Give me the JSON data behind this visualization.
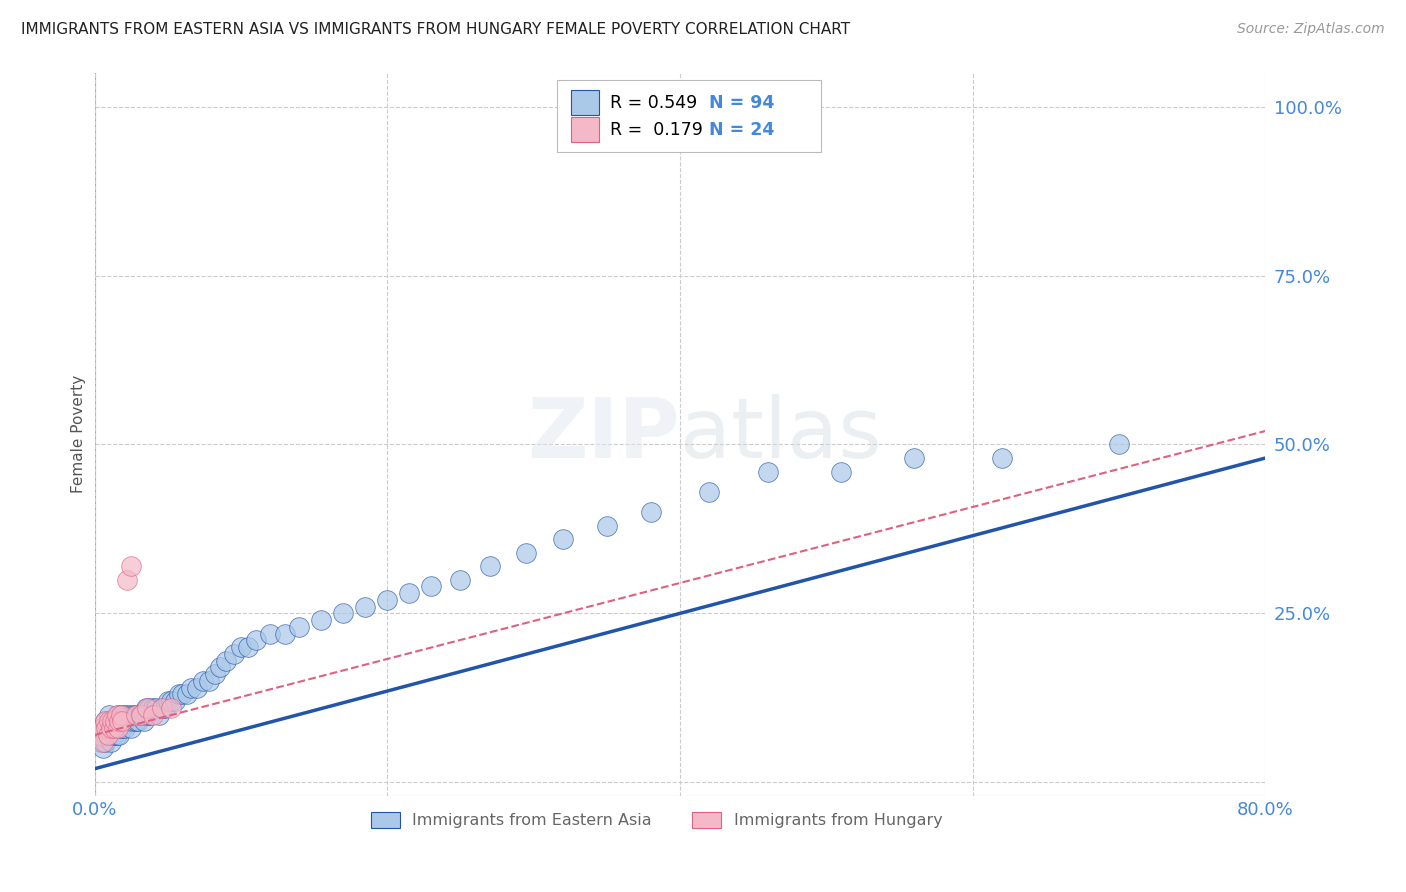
{
  "title": "IMMIGRANTS FROM EASTERN ASIA VS IMMIGRANTS FROM HUNGARY FEMALE POVERTY CORRELATION CHART",
  "source": "Source: ZipAtlas.com",
  "ylabel": "Female Poverty",
  "yticks": [
    0.0,
    0.25,
    0.5,
    0.75,
    1.0
  ],
  "ytick_labels": [
    "",
    "25.0%",
    "50.0%",
    "75.0%",
    "100.0%"
  ],
  "xlim": [
    0.0,
    0.8
  ],
  "ylim": [
    -0.02,
    1.05
  ],
  "legend_label1": "Immigrants from Eastern Asia",
  "legend_label2": "Immigrants from Hungary",
  "r1": 0.549,
  "n1": 94,
  "r2": 0.179,
  "n2": 24,
  "color1": "#aac8e8",
  "color2": "#f4b8c8",
  "trendline1_color": "#2255aa",
  "trendline2_color": "#e06080",
  "background_color": "#ffffff",
  "grid_color": "#cccccc",
  "title_color": "#222222",
  "axis_label_color": "#555555",
  "watermark": "ZIPatlas",
  "scatter1_x": [
    0.004,
    0.005,
    0.006,
    0.006,
    0.007,
    0.007,
    0.008,
    0.009,
    0.01,
    0.01,
    0.011,
    0.011,
    0.012,
    0.012,
    0.013,
    0.013,
    0.014,
    0.014,
    0.015,
    0.015,
    0.016,
    0.016,
    0.017,
    0.017,
    0.018,
    0.018,
    0.019,
    0.019,
    0.02,
    0.02,
    0.021,
    0.021,
    0.022,
    0.022,
    0.023,
    0.024,
    0.025,
    0.025,
    0.026,
    0.027,
    0.028,
    0.029,
    0.03,
    0.031,
    0.032,
    0.033,
    0.034,
    0.035,
    0.036,
    0.037,
    0.038,
    0.04,
    0.042,
    0.044,
    0.046,
    0.048,
    0.05,
    0.052,
    0.055,
    0.058,
    0.06,
    0.063,
    0.066,
    0.07,
    0.074,
    0.078,
    0.082,
    0.086,
    0.09,
    0.095,
    0.1,
    0.105,
    0.11,
    0.12,
    0.13,
    0.14,
    0.155,
    0.17,
    0.185,
    0.2,
    0.215,
    0.23,
    0.25,
    0.27,
    0.295,
    0.32,
    0.35,
    0.38,
    0.42,
    0.46,
    0.51,
    0.56,
    0.62,
    0.7
  ],
  "scatter1_y": [
    0.06,
    0.07,
    0.05,
    0.08,
    0.06,
    0.09,
    0.07,
    0.07,
    0.08,
    0.1,
    0.06,
    0.08,
    0.07,
    0.09,
    0.07,
    0.08,
    0.08,
    0.09,
    0.07,
    0.09,
    0.08,
    0.1,
    0.07,
    0.09,
    0.08,
    0.1,
    0.08,
    0.09,
    0.09,
    0.1,
    0.08,
    0.09,
    0.09,
    0.1,
    0.09,
    0.09,
    0.08,
    0.1,
    0.09,
    0.1,
    0.09,
    0.1,
    0.09,
    0.1,
    0.1,
    0.1,
    0.09,
    0.11,
    0.1,
    0.11,
    0.1,
    0.11,
    0.11,
    0.1,
    0.11,
    0.11,
    0.12,
    0.12,
    0.12,
    0.13,
    0.13,
    0.13,
    0.14,
    0.14,
    0.15,
    0.15,
    0.16,
    0.17,
    0.18,
    0.19,
    0.2,
    0.2,
    0.21,
    0.22,
    0.22,
    0.23,
    0.24,
    0.25,
    0.26,
    0.27,
    0.28,
    0.29,
    0.3,
    0.32,
    0.34,
    0.36,
    0.38,
    0.4,
    0.43,
    0.46,
    0.46,
    0.48,
    0.48,
    0.5
  ],
  "scatter2_x": [
    0.004,
    0.005,
    0.006,
    0.007,
    0.008,
    0.009,
    0.01,
    0.011,
    0.012,
    0.013,
    0.014,
    0.015,
    0.016,
    0.017,
    0.018,
    0.019,
    0.022,
    0.025,
    0.028,
    0.032,
    0.036,
    0.04,
    0.046,
    0.052
  ],
  "scatter2_y": [
    0.07,
    0.08,
    0.06,
    0.09,
    0.08,
    0.07,
    0.09,
    0.08,
    0.09,
    0.08,
    0.09,
    0.1,
    0.08,
    0.09,
    0.1,
    0.09,
    0.3,
    0.32,
    0.1,
    0.1,
    0.11,
    0.1,
    0.11,
    0.11
  ],
  "trendline1_x_start": 0.0,
  "trendline1_y_start": 0.02,
  "trendline1_x_end": 0.8,
  "trendline1_y_end": 0.48,
  "trendline2_x_start": 0.0,
  "trendline2_y_start": 0.07,
  "trendline2_x_end": 0.8,
  "trendline2_y_end": 0.52
}
